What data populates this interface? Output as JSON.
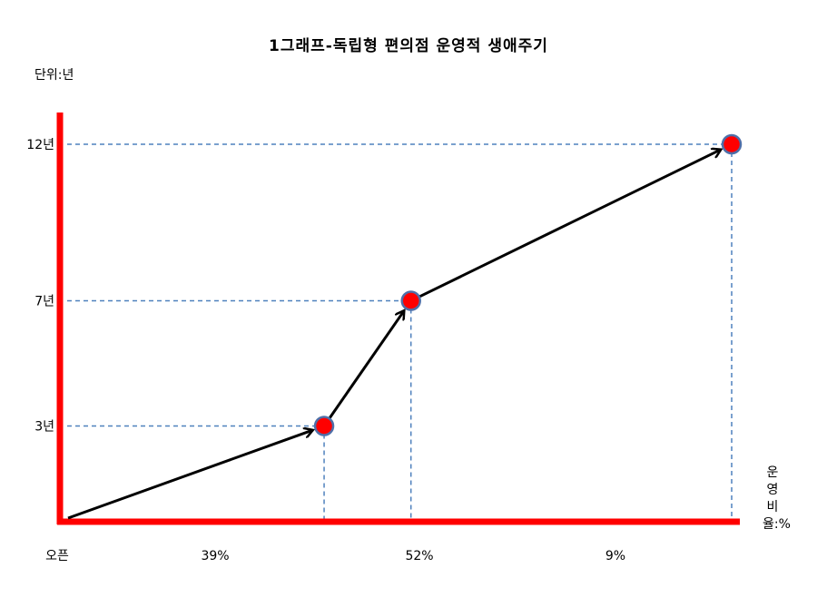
{
  "chart_data": {
    "type": "line",
    "title": "1그래프-독립형 편의점 운영적 생애주기",
    "ylabel": "단위:년",
    "xlabel": "운영비율:%",
    "ylim": [
      0,
      14
    ],
    "y_ticks": [
      {
        "value": 3,
        "label": "3년"
      },
      {
        "value": 7,
        "label": "7년"
      },
      {
        "value": 12,
        "label": "12년"
      }
    ],
    "x_labels": [
      "오픈",
      "39%",
      "52%",
      "9%"
    ],
    "points": [
      {
        "x": 0,
        "y": 0
      },
      {
        "x": 39,
        "y": 3
      },
      {
        "x": 52,
        "y": 7
      },
      {
        "x": 100,
        "y": 12
      }
    ],
    "xlim": [
      0,
      100
    ],
    "grid": false,
    "colors": {
      "axis": "#ff0000",
      "line": "#000000",
      "guide": "#4f81bd",
      "marker_fill": "#ff0000",
      "marker_stroke": "#4f6fa8"
    }
  }
}
